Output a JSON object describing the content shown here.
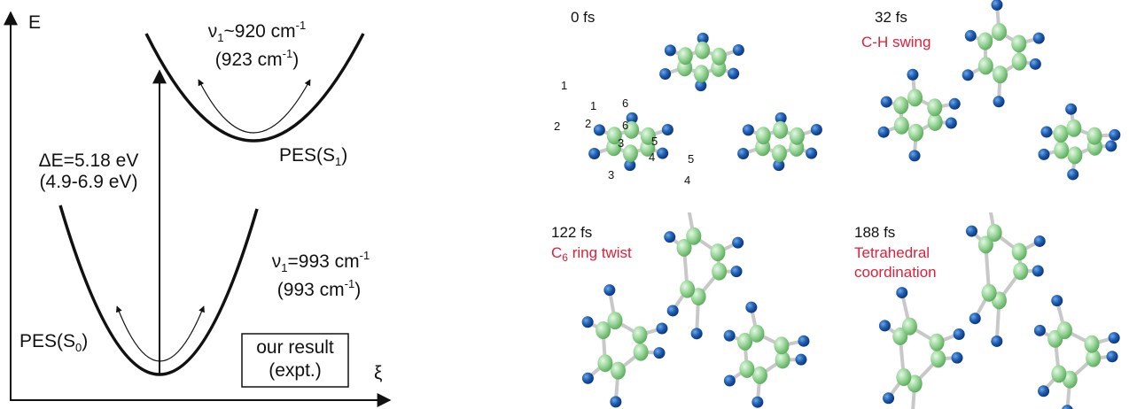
{
  "energy_diagram": {
    "y_axis_label": "E",
    "x_axis_label": "ξ",
    "excited_state": {
      "frequency": {
        "symbol": "ν",
        "subscript": "1",
        "text": "~920 cm",
        "superscript": "-1"
      },
      "experiment": {
        "text": "(923 cm",
        "superscript": "-1",
        "close": ")"
      },
      "label": {
        "text": "PES(S",
        "subscript": "1",
        "close": ")"
      }
    },
    "gap": {
      "value": "ΔE=5.18 eV",
      "experiment": "(4.9-6.9 eV)"
    },
    "ground_state": {
      "frequency": {
        "symbol": "ν",
        "subscript": "1",
        "text": "=993 cm",
        "superscript": "-1"
      },
      "experiment": {
        "text": "(993 cm",
        "superscript": "-1",
        "close": ")"
      },
      "label": {
        "text": "PES(S",
        "subscript": "0",
        "close": ")"
      }
    },
    "legend": [
      "our result",
      "(expt.)"
    ]
  },
  "snapshots": [
    {
      "time": "0 fs",
      "atom_labels": [
        "1",
        "1",
        "2",
        "2",
        "6",
        "6",
        "3",
        "3",
        "5",
        "4",
        "5",
        "4"
      ]
    },
    {
      "time": "32 fs",
      "caption": [
        {
          "text": "C-H swing"
        }
      ]
    },
    {
      "time": "122 fs",
      "caption": [
        {
          "text": "C"
        },
        {
          "subscript": "6"
        },
        {
          "text": " ring twist"
        }
      ]
    },
    {
      "time": "188 fs",
      "caption": [
        {
          "text": "Tetrahedral"
        },
        {
          "text": "coordination"
        }
      ]
    }
  ]
}
